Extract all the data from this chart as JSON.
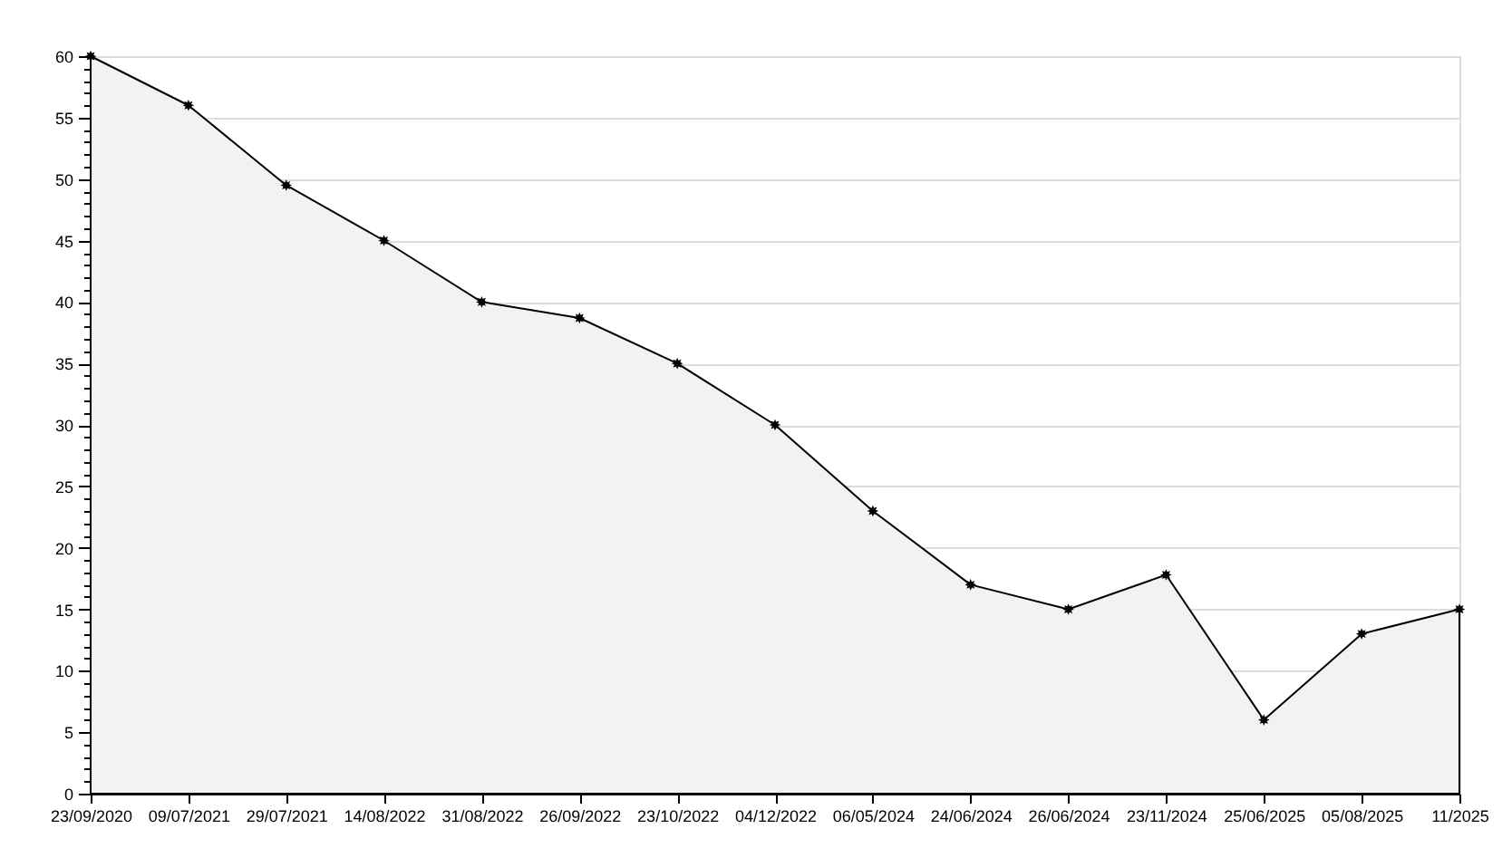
{
  "chart_data": {
    "type": "area",
    "categories": [
      "23/09/2020",
      "09/07/2021",
      "29/07/2021",
      "14/08/2022",
      "31/08/2022",
      "26/09/2022",
      "23/10/2022",
      "04/12/2022",
      "06/05/2024",
      "24/06/2024",
      "26/06/2024",
      "23/11/2024",
      "25/06/2025",
      "05/08/2025",
      "11/2025"
    ],
    "series": [
      {
        "color": "#f2f2f2",
        "values": [
          60,
          56,
          49.5,
          45,
          40,
          38.7,
          35,
          30,
          23,
          17,
          15,
          17.8,
          6,
          13,
          15
        ]
      }
    ],
    "ylim": [
      0,
      60
    ],
    "yticks": [
      0,
      {
        "value": 1,
        "label": null
      },
      {
        "value": 2,
        "label": null
      },
      {
        "value": 3,
        "label": null
      },
      {
        "value": 4,
        "label": null
      },
      5,
      {
        "value": 6,
        "label": null
      },
      {
        "value": 7,
        "label": null
      },
      {
        "value": 8,
        "label": null
      },
      {
        "value": 9,
        "label": null
      },
      10,
      {
        "value": 11,
        "label": null
      },
      {
        "value": 12,
        "label": null
      },
      {
        "value": 13,
        "label": null
      },
      {
        "value": 14,
        "label": null
      },
      15,
      {
        "value": 16,
        "label": null
      },
      {
        "value": 17,
        "label": null
      },
      {
        "value": 18,
        "label": null
      },
      {
        "value": 19,
        "label": null
      },
      20,
      {
        "value": 21,
        "label": null
      },
      {
        "value": 22,
        "label": null
      },
      {
        "value": 23,
        "label": null
      },
      {
        "value": 24,
        "label": null
      },
      25,
      {
        "value": 26,
        "label": null
      },
      {
        "value": 27,
        "label": null
      },
      {
        "value": 28,
        "label": null
      },
      {
        "value": 29,
        "label": null
      },
      30,
      {
        "value": 31,
        "label": null
      },
      {
        "value": 32,
        "label": null
      },
      {
        "value": 33,
        "label": null
      },
      {
        "value": 34,
        "label": null
      },
      35,
      {
        "value": 36,
        "label": null
      },
      {
        "value": 37,
        "label": null
      },
      {
        "value": 38,
        "label": null
      },
      {
        "value": 39,
        "label": null
      },
      40,
      {
        "value": 41,
        "label": null
      },
      {
        "value": 42,
        "label": null
      },
      {
        "value": 43,
        "label": null
      },
      {
        "value": 44,
        "label": null
      },
      45,
      {
        "value": 46,
        "label": null
      },
      {
        "value": 47,
        "label": null
      },
      {
        "value": 48,
        "label": null
      },
      {
        "value": 49,
        "label": null
      },
      50,
      {
        "value": 51,
        "label": null
      },
      {
        "value": 52,
        "label": null
      },
      {
        "value": 53,
        "label": null
      },
      {
        "value": 54,
        "label": null
      },
      55,
      {
        "value": 56,
        "label": null
      },
      {
        "value": 57,
        "label": null
      },
      {
        "value": 58,
        "label": null
      },
      {
        "value": 59,
        "label": null
      },
      60
    ],
    "grid": "y",
    "marker": "star",
    "line_style": "solid"
  }
}
